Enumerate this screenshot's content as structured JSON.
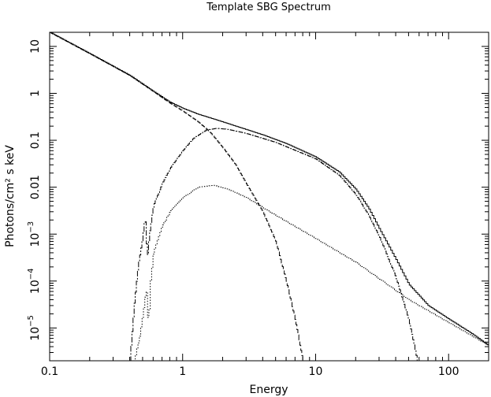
{
  "colors": {
    "background": "#ffffff",
    "foreground": "#000000"
  },
  "chart_data": {
    "type": "line",
    "title": "Template SBG Spectrum",
    "xlabel": "Energy",
    "ylabel": "Photons/cm² s keV",
    "xscale": "log",
    "yscale": "log",
    "xlim": [
      0.1,
      200
    ],
    "ylim": [
      2e-06,
      20
    ],
    "grid": false,
    "legend": "none",
    "x_ticks": [
      {
        "value": 0.1,
        "label": "0.1"
      },
      {
        "value": 1,
        "label": "1"
      },
      {
        "value": 10,
        "label": "10"
      },
      {
        "value": 100,
        "label": "100"
      }
    ],
    "y_ticks": [
      {
        "value": 10,
        "base": "10",
        "exp": ""
      },
      {
        "value": 1,
        "base": "1",
        "exp": ""
      },
      {
        "value": 0.1,
        "base": "0.1",
        "exp": ""
      },
      {
        "value": 0.01,
        "base": "0.01",
        "exp": ""
      },
      {
        "value": 0.001,
        "base": "10",
        "exp": "−3"
      },
      {
        "value": 0.0001,
        "base": "10",
        "exp": "−4"
      },
      {
        "value": 1e-05,
        "base": "10",
        "exp": "−5"
      }
    ],
    "series": [
      {
        "style": "solid",
        "x": [
          0.1,
          0.2,
          0.4,
          0.6,
          0.8,
          1.0,
          1.3,
          1.8,
          2.5,
          4,
          6,
          10,
          15,
          20,
          25,
          30,
          40,
          50,
          70,
          100,
          150,
          200
        ],
        "y": [
          20,
          7,
          2.4,
          1.1,
          0.65,
          0.48,
          0.36,
          0.27,
          0.2,
          0.13,
          0.085,
          0.044,
          0.021,
          0.009,
          0.0035,
          0.0013,
          0.00029,
          8.5e-05,
          3e-05,
          1.55e-05,
          7.5e-06,
          4.2e-06
        ]
      },
      {
        "style": "dashed",
        "x": [
          0.1,
          0.2,
          0.4,
          0.6,
          0.8,
          1.0,
          1.3,
          1.6,
          2.0,
          2.5,
          3,
          4,
          5,
          6,
          7,
          8
        ],
        "y": [
          20,
          7,
          2.4,
          1.1,
          0.62,
          0.42,
          0.25,
          0.15,
          0.07,
          0.03,
          0.012,
          0.003,
          0.0007,
          0.0001,
          1.5e-05,
          2e-06
        ]
      },
      {
        "style": "dash-dot",
        "x": [
          0.4,
          0.43,
          0.46,
          0.5,
          0.52,
          0.54,
          0.56,
          0.6,
          0.7,
          0.8,
          1.0,
          1.2,
          1.5,
          1.8,
          2.2,
          3,
          5,
          10,
          15,
          20,
          25,
          30,
          40,
          50,
          58
        ],
        "y": [
          2e-06,
          3e-05,
          0.0002,
          0.0009,
          0.0025,
          0.0003,
          0.001,
          0.004,
          0.012,
          0.025,
          0.06,
          0.11,
          0.165,
          0.18,
          0.17,
          0.14,
          0.09,
          0.04,
          0.018,
          0.007,
          0.0025,
          0.0009,
          0.00012,
          1.5e-05,
          2e-06
        ]
      },
      {
        "style": "dotted",
        "x": [
          0.43,
          0.47,
          0.5,
          0.53,
          0.55,
          0.57,
          0.6,
          0.7,
          0.8,
          1.0,
          1.3,
          1.7,
          2.2,
          3,
          5,
          10,
          20,
          50,
          100,
          200
        ],
        "y": [
          2e-06,
          6e-06,
          2e-05,
          7e-05,
          1e-05,
          0.0001,
          0.0004,
          0.0015,
          0.003,
          0.006,
          0.01,
          0.011,
          0.009,
          0.006,
          0.0025,
          0.0008,
          0.00025,
          4e-05,
          1.3e-05,
          4.2e-06
        ]
      }
    ]
  }
}
